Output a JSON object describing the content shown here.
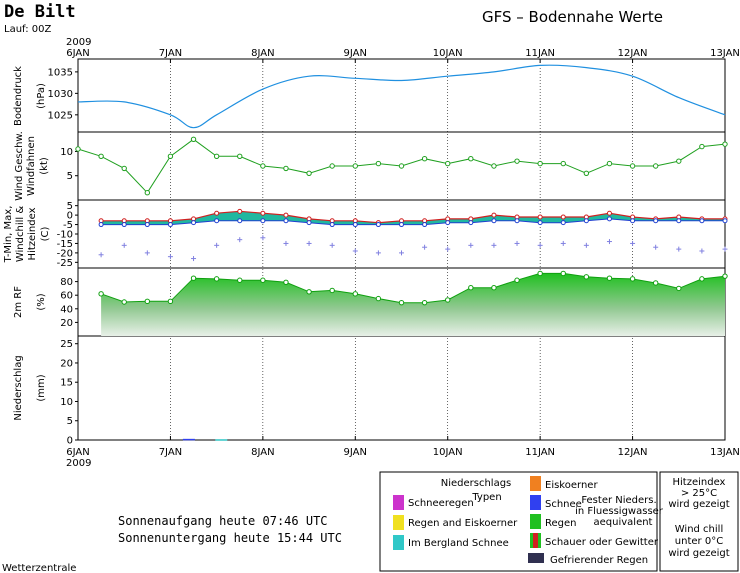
{
  "header": {
    "station": "De Bilt",
    "run": "Lauf: 00Z",
    "title": "GFS – Bodennahe Werte",
    "year": "2009"
  },
  "x_ticks": [
    "6JAN",
    "7JAN",
    "8JAN",
    "9JAN",
    "10JAN",
    "11JAN",
    "12JAN",
    "13JAN"
  ],
  "panels": {
    "pressure": {
      "ylabel1": "Bodendruck",
      "ylabel2": "(hPa)",
      "ticks": [
        "1035",
        "1030",
        "1025"
      ]
    },
    "wind": {
      "ylabel1": "Wind Geschw.",
      "ylabel2": "Windfahnen",
      "ylabel3": "(kt)",
      "ticks": [
        "10",
        "5"
      ]
    },
    "temp": {
      "label_tmin": "T-Min, Max,",
      "label_windchill": "Windchill &",
      "label_hitze": "Hitzeindex",
      "unit": "(C)",
      "ticks": [
        "5",
        "0",
        "-5",
        "-10",
        "-15",
        "-20",
        "-25"
      ]
    },
    "rh": {
      "ylabel1": "2m RF",
      "ylabel2": "(%)",
      "ticks": [
        "80",
        "60",
        "40",
        "20"
      ]
    },
    "precip": {
      "ylabel1": "Niederschlag",
      "ylabel2": "(mm)",
      "ticks": [
        "25",
        "20",
        "15",
        "10",
        "5",
        "0"
      ]
    }
  },
  "chart_data": [
    {
      "type": "line",
      "title": "Bodendruck",
      "ylabel": "hPa",
      "ylim": [
        1021,
        1038
      ],
      "x_days": [
        0,
        0.5,
        1,
        1.25,
        1.5,
        2,
        2.5,
        3,
        3.5,
        4,
        4.5,
        5,
        5.5,
        6,
        6.5,
        7
      ],
      "values": [
        1028,
        1028,
        1025,
        1022,
        1025,
        1031,
        1034,
        1033.5,
        1033,
        1034,
        1035,
        1036.5,
        1036,
        1034,
        1029,
        1025
      ]
    },
    {
      "type": "line",
      "title": "Wind Geschw.",
      "ylabel": "kt",
      "ylim": [
        0,
        14
      ],
      "x_days": [
        0,
        0.25,
        0.5,
        0.75,
        1,
        1.25,
        1.5,
        1.75,
        2,
        2.25,
        2.5,
        2.75,
        3,
        3.25,
        3.5,
        3.75,
        4,
        4.25,
        4.5,
        4.75,
        5,
        5.25,
        5.5,
        5.75,
        6,
        6.25,
        6.5,
        6.75,
        7
      ],
      "values": [
        10.5,
        9,
        6.5,
        1.5,
        9,
        12.5,
        9,
        9,
        7,
        6.5,
        5.5,
        7,
        7,
        7.5,
        7,
        8.5,
        7.5,
        8.5,
        7,
        8,
        7.5,
        7.5,
        5.5,
        7.5,
        7,
        7,
        8,
        11,
        11.5
      ]
    },
    {
      "type": "area",
      "title": "T-Min, Max, Windchill & Hitzeindex",
      "ylabel": "C",
      "ylim": [
        -28,
        8
      ],
      "x_days": [
        0.25,
        0.5,
        0.75,
        1,
        1.25,
        1.5,
        1.75,
        2,
        2.25,
        2.5,
        2.75,
        3,
        3.25,
        3.5,
        3.75,
        4,
        4.25,
        4.5,
        4.75,
        5,
        5.25,
        5.5,
        5.75,
        6,
        6.25,
        6.5,
        6.75,
        7
      ],
      "series": [
        {
          "name": "T-Max",
          "values": [
            -3,
            -3,
            -3,
            -3,
            -2,
            1,
            2,
            1,
            0,
            -2,
            -3,
            -3,
            -4,
            -3,
            -3,
            -2,
            -2,
            0,
            -1,
            -1,
            -1,
            -1,
            1,
            -1,
            -2,
            -1,
            -2,
            -2
          ]
        },
        {
          "name": "T-Min",
          "values": [
            -5,
            -5,
            -5,
            -5,
            -4,
            -3,
            -3,
            -3,
            -3,
            -4,
            -5,
            -5,
            -5,
            -5,
            -5,
            -4,
            -4,
            -3,
            -3,
            -4,
            -4,
            -3,
            -2,
            -3,
            -3,
            -3,
            -3,
            -3
          ]
        },
        {
          "name": "Windchill",
          "values": [
            -21,
            -16,
            -20,
            -22,
            -23,
            -16,
            -13,
            -12,
            -15,
            -15,
            -16,
            -19,
            -20,
            -20,
            -17,
            -18,
            -16,
            -16,
            -15,
            -16,
            -15,
            -16,
            -14,
            -15,
            -17,
            -18,
            -19,
            -18
          ]
        }
      ]
    },
    {
      "type": "area",
      "title": "2m RF",
      "ylabel": "%",
      "ylim": [
        0,
        100
      ],
      "x_days": [
        0.25,
        0.5,
        0.75,
        1,
        1.25,
        1.5,
        1.75,
        2,
        2.25,
        2.5,
        2.75,
        3,
        3.25,
        3.5,
        3.75,
        4,
        4.25,
        4.5,
        4.75,
        5,
        5.25,
        5.5,
        5.75,
        6,
        6.25,
        6.5,
        6.75,
        7
      ],
      "values": [
        62,
        50,
        51,
        51,
        85,
        84,
        82,
        82,
        79,
        65,
        67,
        62,
        55,
        49,
        49,
        53,
        71,
        71,
        82,
        92,
        92,
        87,
        85,
        84,
        78,
        70,
        84,
        88
      ]
    },
    {
      "type": "bar",
      "title": "Niederschlag",
      "ylabel": "mm",
      "ylim": [
        0,
        27
      ],
      "x_days": [
        1.2,
        1.55
      ],
      "values": [
        0.3,
        0.2
      ]
    }
  ],
  "footer": {
    "sunrise": "Sonnenaufgang heute 07:46 UTC",
    "sunset": "Sonnenuntergang heute 15:44 UTC",
    "credit": "Wetterzentrale"
  },
  "legend": {
    "title1": "Niederschlags",
    "title2": "Typen",
    "items": [
      {
        "label": "Schneeregen",
        "color": "#cc33cc"
      },
      {
        "label": "Regen and Eiskoerner",
        "color": "#f0e020"
      },
      {
        "label": "Im Bergland Schnee",
        "color": "#30c8c8"
      },
      {
        "label": "Eiskoerner",
        "color": "#f08020"
      },
      {
        "label": "Schnee",
        "color": "#3040f0"
      },
      {
        "label": "Regen",
        "color": "#20c020"
      },
      {
        "label": "Schauer oder Gewitter",
        "color": "#d02020"
      },
      {
        "label": "Gefrierender Regen",
        "color": "#303050"
      }
    ],
    "fester1": "Fester Nieders.",
    "fester2": "in Fluessigwasser",
    "fester3": "aequivalent",
    "hitze": [
      "Hitzeindex",
      "> 25°C",
      "wird gezeigt"
    ],
    "chill": [
      "Wind chill",
      "unter 0°C",
      "wird gezeigt"
    ]
  }
}
